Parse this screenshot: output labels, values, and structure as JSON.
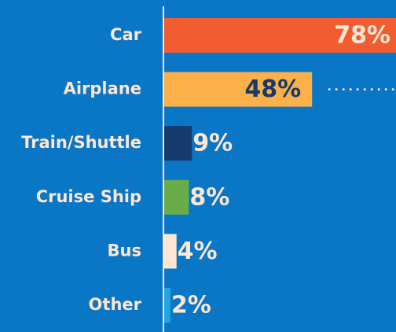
{
  "chart_data": {
    "type": "bar",
    "orientation": "horizontal",
    "categories": [
      "Car",
      "Airplane",
      "Train/Shuttle",
      "Cruise Ship",
      "Bus",
      "Other"
    ],
    "values": [
      78,
      48,
      9,
      8,
      4,
      2
    ],
    "value_labels": [
      "78%",
      "48%",
      "9%",
      "8%",
      "4%",
      "2%"
    ],
    "colors": [
      "#f15d31",
      "#fbb04a",
      "#163a6c",
      "#69ad4b",
      "#fde6d2",
      "#1fa6e3"
    ]
  }
}
